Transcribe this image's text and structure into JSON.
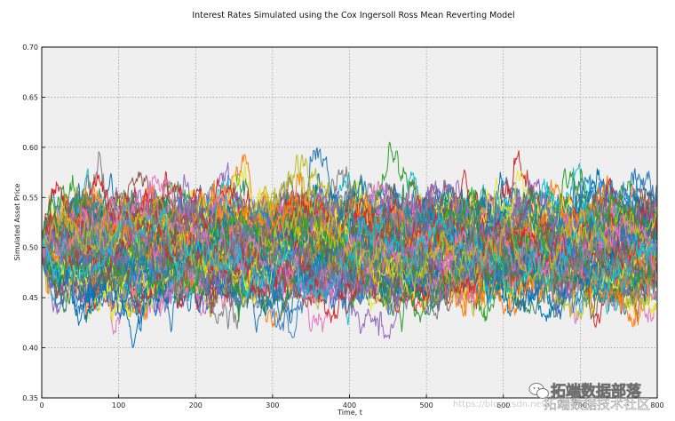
{
  "chart_data": {
    "type": "line",
    "title": "Interest Rates Simulated using the Cox Ingersoll Ross Mean Reverting Model",
    "xlabel": "Time, t",
    "ylabel": "Simulated Asset Price",
    "xlim": [
      0,
      500
    ],
    "ylim": [
      0.35,
      0.7
    ],
    "xticks": [
      "0",
      "100",
      "200",
      "300",
      "400",
      "500",
      "600",
      "700",
      "800"
    ],
    "yticks": [
      "0.35",
      "0.40",
      "0.45",
      "0.50",
      "0.55",
      "0.60",
      "0.65",
      "0.70"
    ],
    "grid": true,
    "model": {
      "start": 0.5,
      "mean": 0.5,
      "steps": 800,
      "num_paths": 150
    },
    "colors": [
      "#1f77b4",
      "#ff7f0e",
      "#2ca02c",
      "#d62728",
      "#9467bd",
      "#8c564b",
      "#e377c2",
      "#7f7f7f",
      "#bcbd22",
      "#17becf",
      "#0072b2",
      "#e8e83a",
      "#3a7fc4",
      "#2e8b57"
    ]
  },
  "watermark": {
    "text": "拓端数据部落",
    "url_text": "https://blog.csdn.net/",
    "sub_text": "拓端数据技术社区"
  }
}
